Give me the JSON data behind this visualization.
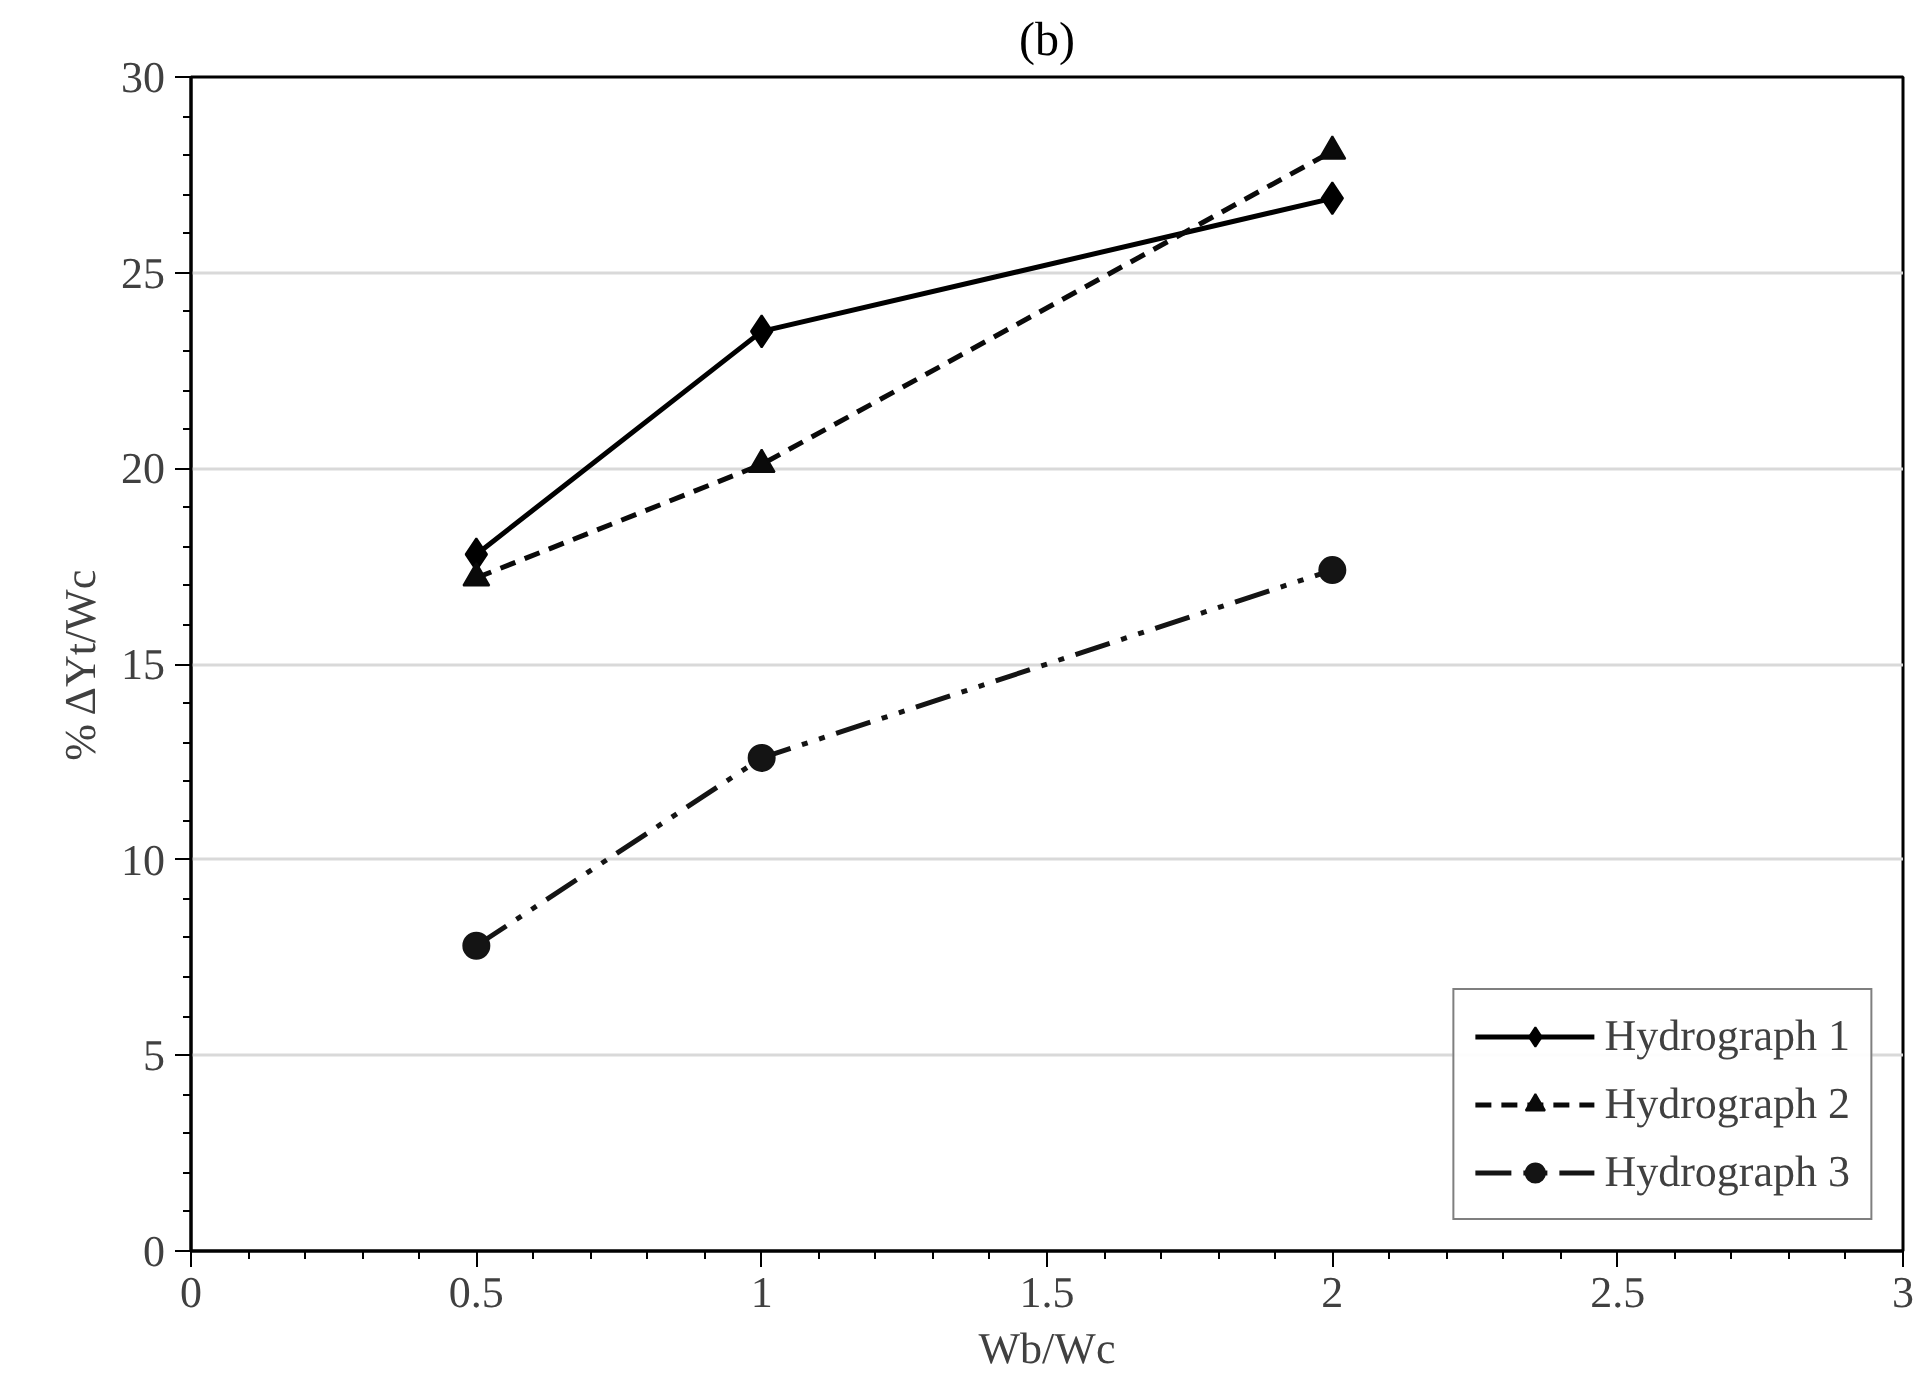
{
  "chart_data": {
    "type": "line",
    "title": "(b)",
    "xlabel": "Wb/Wc",
    "ylabel": "% ΔYt/Wc",
    "x": [
      0.5,
      1,
      2
    ],
    "series": [
      {
        "name": "Hydrograph 1",
        "color": "#000000",
        "values": [
          17.8,
          23.5,
          26.9
        ],
        "marker": "diamond",
        "line_style": "solid"
      },
      {
        "name": "Hydrograph 2",
        "color": "#0a0a0a",
        "values": [
          17.2,
          20.1,
          28.1
        ],
        "marker": "triangle",
        "line_style": "dashed"
      },
      {
        "name": "Hydrograph 3",
        "color": "#141414",
        "values": [
          7.8,
          12.6,
          17.4
        ],
        "marker": "circle",
        "line_style": "dashdot"
      }
    ],
    "xlim": [
      0,
      3
    ],
    "xticks": [
      0,
      0.5,
      1,
      1.5,
      2,
      2.5,
      3
    ],
    "ylim": [
      0,
      30
    ],
    "yticks": [
      0,
      5,
      10,
      15,
      20,
      25,
      30
    ],
    "grid": "y",
    "legend": "bottom right"
  }
}
